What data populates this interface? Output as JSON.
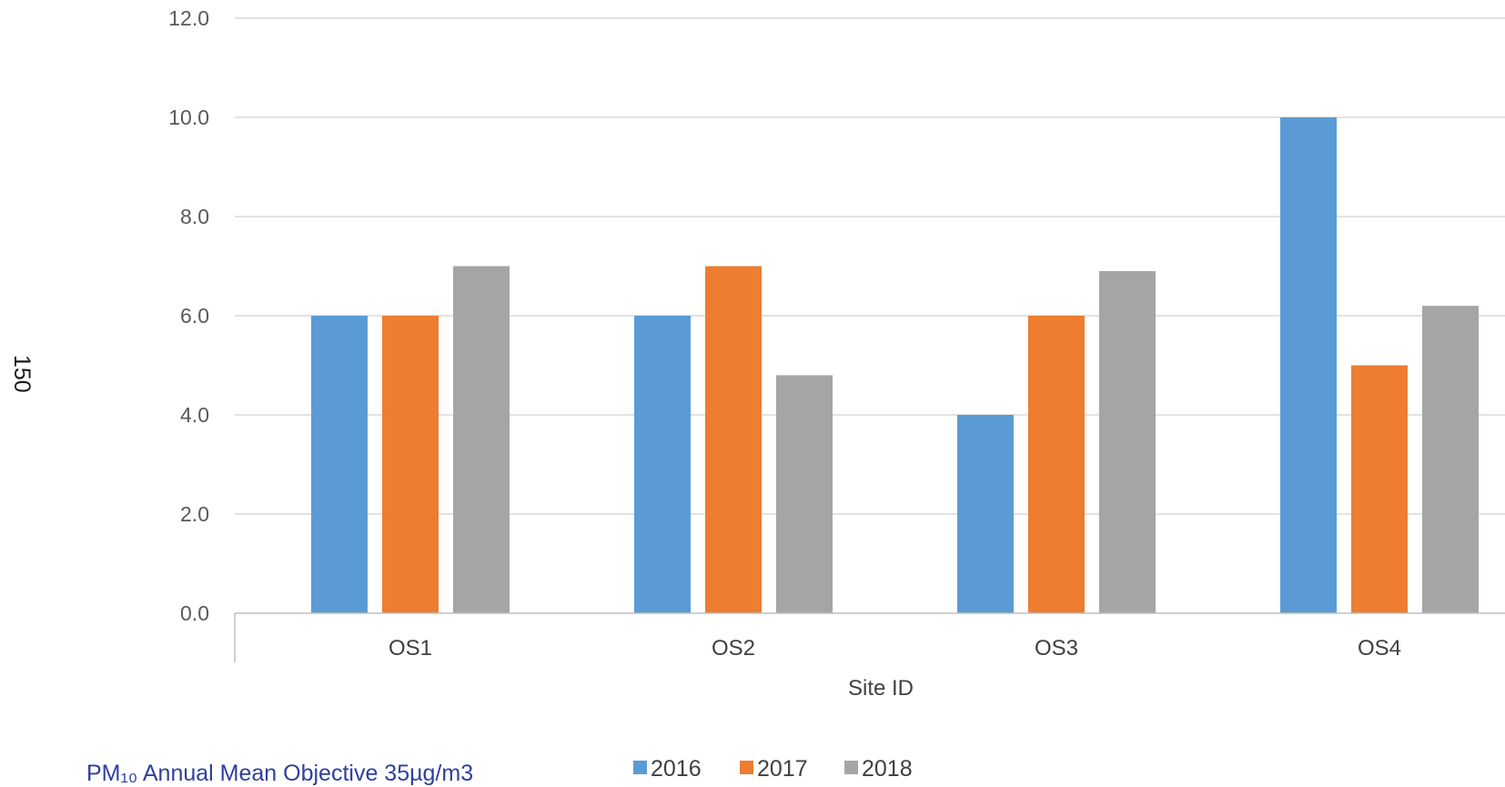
{
  "page_number": "150",
  "caption": "PM₁₀ Annual Mean Objective 35µg/m3",
  "chart_data": {
    "type": "bar",
    "categories": [
      "OS1",
      "OS2",
      "OS3",
      "OS4"
    ],
    "series": [
      {
        "name": "2016",
        "values": [
          6.0,
          6.0,
          4.0,
          10.0
        ],
        "color": "#5B9BD5"
      },
      {
        "name": "2017",
        "values": [
          6.0,
          7.0,
          6.0,
          5.0
        ],
        "color": "#ED7D31"
      },
      {
        "name": "2018",
        "values": [
          7.0,
          4.8,
          6.9,
          6.2
        ],
        "color": "#A5A5A5"
      }
    ],
    "yticks": [
      "0.0",
      "2.0",
      "4.0",
      "6.0",
      "8.0",
      "10.0",
      "12.0"
    ],
    "xlabel": "Site ID",
    "ylabel": "",
    "ylim": [
      0,
      12
    ],
    "grid": true,
    "legend": "bottom",
    "gridline_color": "#D9D9D9"
  }
}
